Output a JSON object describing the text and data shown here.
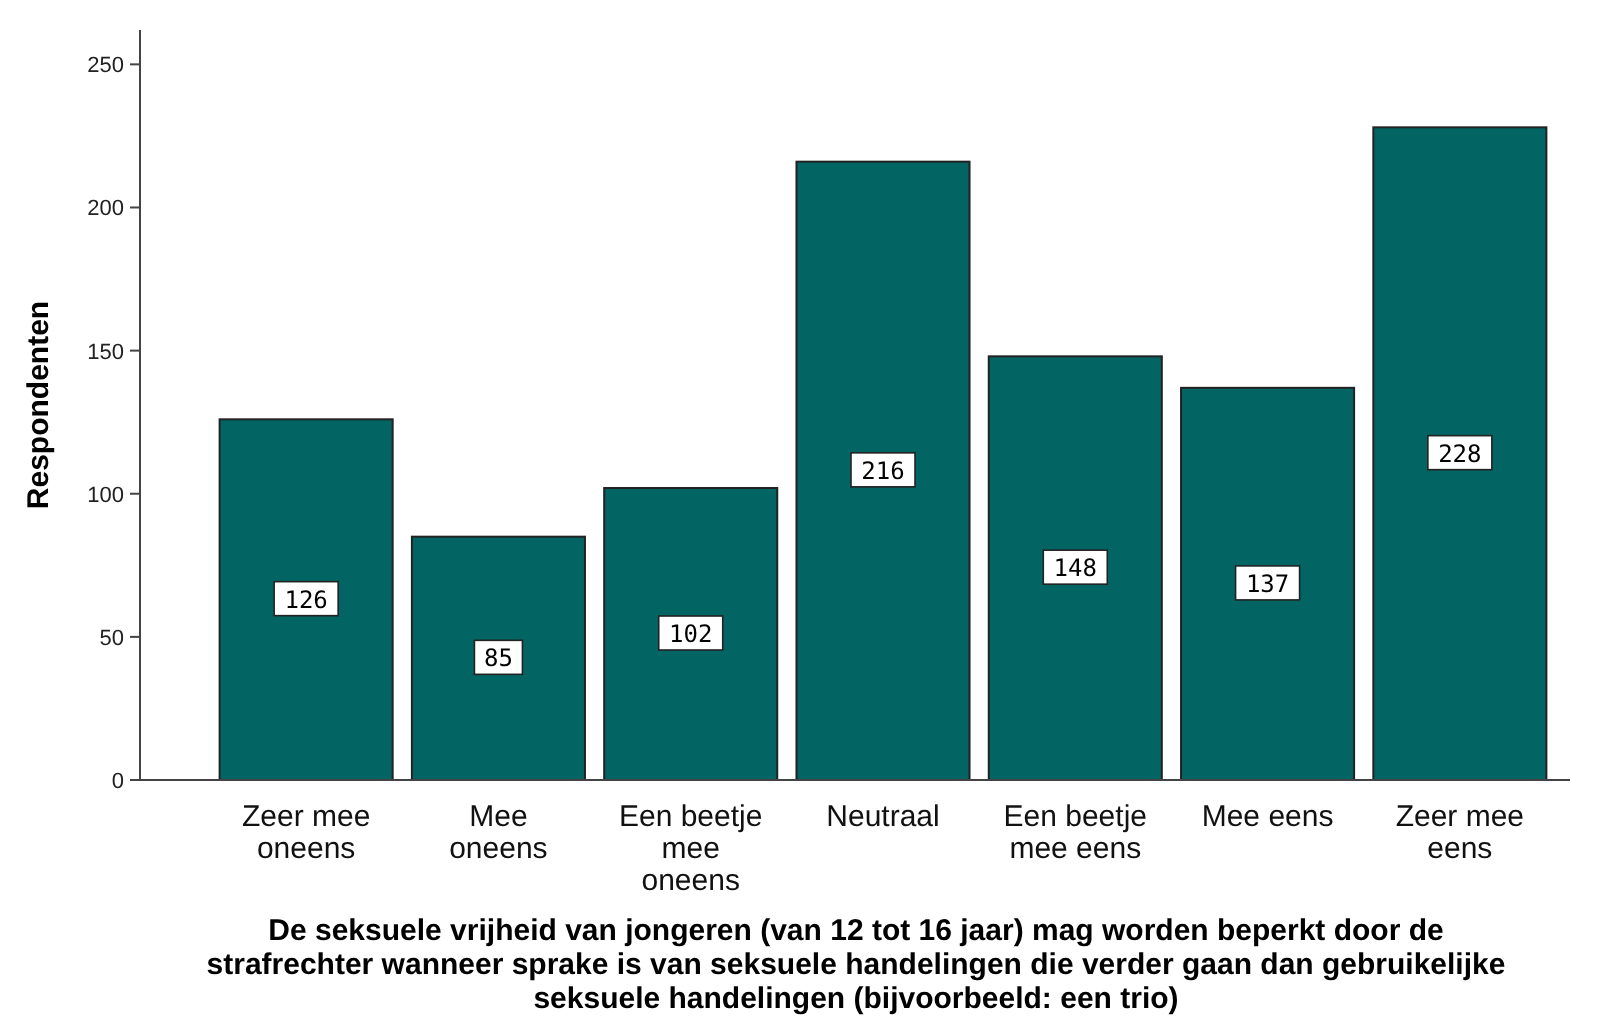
{
  "chart_data": {
    "type": "bar",
    "xlabel": "De seksuele vrijheid van jongeren (van 12 tot 16 jaar) mag worden beperkt door de strafrechter wanneer sprake is van seksuele handelingen die verder gaan dan gebruikelijke seksuele handelingen (bijvoorbeeld: een trio)",
    "ylabel": "Respondenten",
    "categories": [
      "Zeer mee oneens",
      "Mee oneens",
      "Een beetje mee oneens",
      "Neutraal",
      "Een beetje mee eens",
      "Mee eens",
      "Zeer mee eens"
    ],
    "values": [
      126,
      85,
      102,
      216,
      148,
      137,
      228
    ],
    "color": "#036563",
    "ylim": [
      0,
      262
    ],
    "yticks": [
      0,
      50,
      100,
      150,
      200,
      250
    ],
    "data_labels": true,
    "grid": false
  }
}
